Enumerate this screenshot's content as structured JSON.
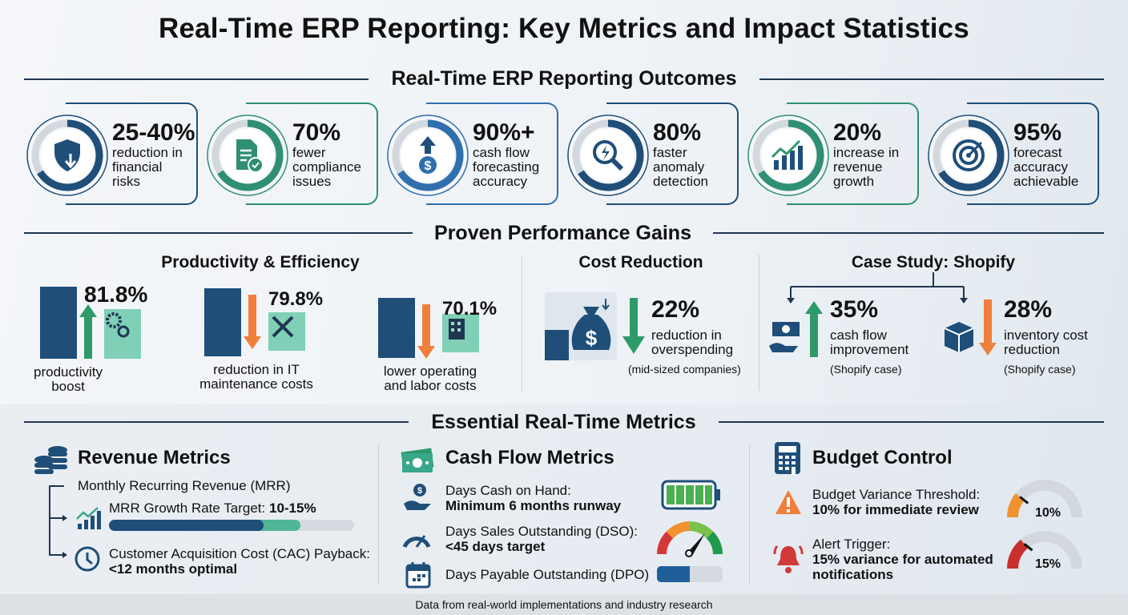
{
  "title": "Real-Time ERP Reporting: Key Metrics and Impact Statistics",
  "outcomes": {
    "heading": "Real-Time ERP Reporting Outcomes",
    "items": [
      {
        "stat": "25-40%",
        "l1": "reduction in",
        "l2": "financial",
        "l3": "risks",
        "icon": "shield-icon",
        "color": "#1f4e79"
      },
      {
        "stat": "70%",
        "l1": "fewer",
        "l2": "compliance",
        "l3": "issues",
        "icon": "document-check-icon",
        "color": "#2f8f72"
      },
      {
        "stat": "90%+",
        "l1": "cash flow",
        "l2": "forecasting",
        "l3": "accuracy",
        "icon": "dollar-up-icon",
        "color": "#2f6fad"
      },
      {
        "stat": "80%",
        "l1": "faster",
        "l2": "anomaly",
        "l3": "detection",
        "icon": "magnifier-icon",
        "color": "#1f4e79"
      },
      {
        "stat": "20%",
        "l1": "increase in",
        "l2": "revenue",
        "l3": "growth",
        "icon": "growth-chart-icon",
        "color": "#2f8f72"
      },
      {
        "stat": "95%",
        "l1": "forecast",
        "l2": "accuracy",
        "l3": "achievable",
        "icon": "target-icon",
        "color": "#1f4e79"
      }
    ]
  },
  "gains": {
    "heading": "Proven Performance Gains",
    "productivity": {
      "heading": "Productivity & Efficiency",
      "items": [
        {
          "value": "81.8%",
          "l1": "productivity",
          "l2": "boost",
          "direction": "up",
          "icon": "gears-icon"
        },
        {
          "value": "79.8%",
          "l1": "reduction in IT",
          "l2": "maintenance costs",
          "direction": "down",
          "icon": "wrench-icon"
        },
        {
          "value": "70.1%",
          "l1": "lower operating",
          "l2": "and labor costs",
          "direction": "down",
          "icon": "building-icon"
        }
      ]
    },
    "cost": {
      "heading": "Cost Reduction",
      "value": "22%",
      "l1": "reduction in",
      "l2": "overspending",
      "note": "(mid-sized companies)"
    },
    "case": {
      "heading": "Case Study: Shopify",
      "items": [
        {
          "value": "35%",
          "l1": "cash flow",
          "l2": "improvement",
          "note": "(Shopify case)",
          "icon": "cash-hand-icon"
        },
        {
          "value": "28%",
          "l1": "inventory cost",
          "l2": "reduction",
          "note": "(Shopify case)",
          "icon": "box-icon"
        }
      ]
    }
  },
  "metrics": {
    "heading": "Essential Real-Time Metrics",
    "revenue": {
      "heading": "Revenue Metrics",
      "mrr": "Monthly Recurring Revenue (MRR)",
      "growth_label": "MRR Growth Rate Target: ",
      "growth_value": "10-15%",
      "progress_primary": 0.63,
      "progress_secondary": 0.78,
      "cac_label": "Customer Acquisition Cost (CAC) Payback:",
      "cac_value": "<12 months optimal"
    },
    "cashflow": {
      "heading": "Cash Flow Metrics",
      "cash_label": "Days Cash on Hand:",
      "cash_value": "Minimum 6 months runway",
      "dso_label": "Days Sales Outstanding (DSO):",
      "dso_value": "<45 days target",
      "dpo_label": "Days Payable Outstanding (DPO)",
      "dpo_fill": 0.5
    },
    "budget": {
      "heading": "Budget Control",
      "variance_label": "Budget Variance Threshold:",
      "variance_value": "10% for immediate review",
      "variance_gauge": "10%",
      "alert_label": "Alert Trigger:",
      "alert_l1": "15% variance for automated",
      "alert_l2": "notifications",
      "alert_gauge": "15%"
    }
  },
  "footer": "Data from real-world implementations and industry research",
  "colors": {
    "navy": "#1f4e79",
    "teal": "#3aa68a",
    "orange": "#f07f3c",
    "green": "#2e9a6a",
    "red": "#d23a3a"
  }
}
